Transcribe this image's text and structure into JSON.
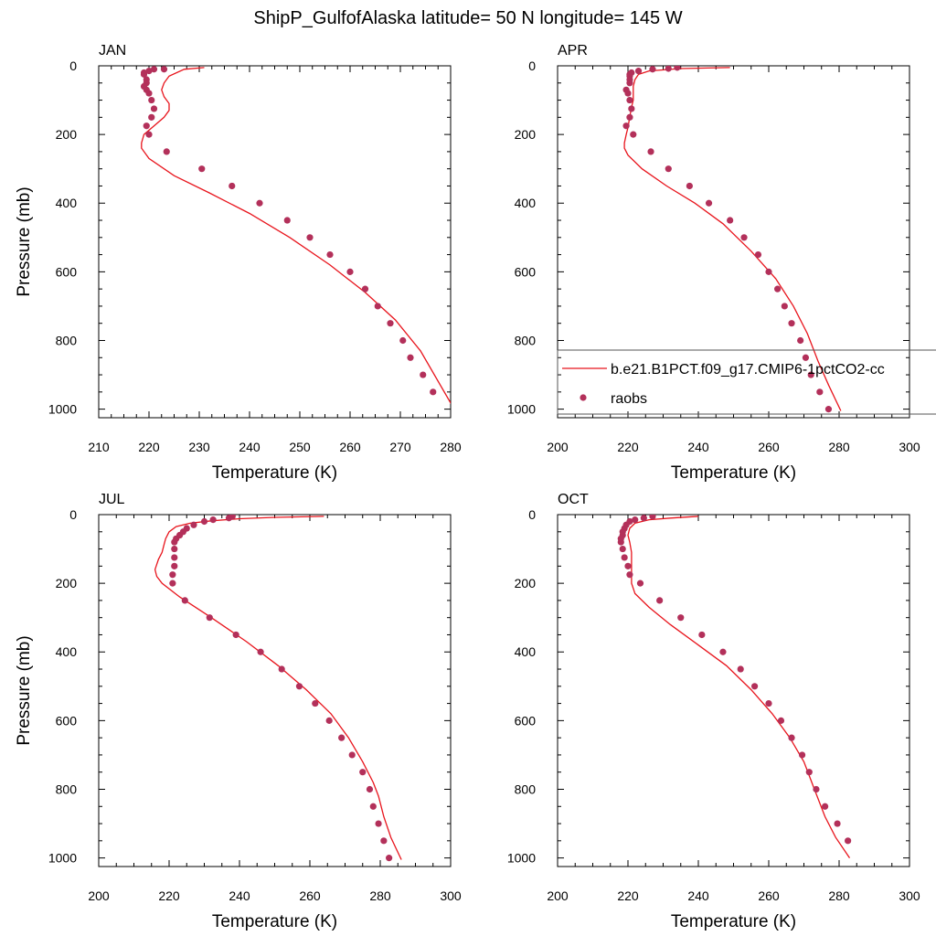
{
  "figure": {
    "title": "ShipP_GulfofAlaska  latitude= 50 N longitude= 145 W"
  },
  "legend": {
    "model_label": "b.e21.B1PCT.f09_g17.CMIP6-1pctCO2-cc",
    "obs_label": "raobs"
  },
  "colors": {
    "model_line": "#e8141c",
    "obs_marker": "#b3305a"
  },
  "chart_data": [
    {
      "type": "line",
      "title": "JAN",
      "xlabel": "Temperature (K)",
      "ylabel": "Pressure (mb)",
      "xlim": [
        210,
        280
      ],
      "xticks": [
        210,
        220,
        230,
        240,
        250,
        260,
        270,
        280
      ],
      "ylim": [
        1025,
        0
      ],
      "yticks": [
        0,
        200,
        400,
        600,
        800,
        1000
      ],
      "series": [
        {
          "kind": "line",
          "x": [
            231,
            227,
            224,
            223,
            222.5,
            223,
            224,
            224,
            223,
            221,
            219,
            218.5,
            218.5,
            220,
            225,
            232,
            240,
            248,
            256,
            263,
            269,
            274,
            280.5
          ],
          "y": [
            5,
            10,
            30,
            50,
            70,
            90,
            110,
            130,
            150,
            175,
            200,
            225,
            240,
            270,
            320,
            370,
            430,
            500,
            580,
            660,
            740,
            830,
            995
          ]
        },
        {
          "kind": "scatter",
          "x": [
            223,
            221,
            220,
            219,
            219,
            219.5,
            219.5,
            219,
            219.5,
            220,
            220.5,
            221,
            220.5,
            219.5,
            220,
            223.5,
            230.5,
            236.5,
            242,
            247.5,
            252,
            256,
            260,
            263,
            265.5,
            268,
            270.5,
            272,
            274.5,
            276.5
          ],
          "y": [
            10,
            10,
            15,
            20,
            25,
            40,
            50,
            60,
            70,
            80,
            100,
            125,
            150,
            175,
            200,
            250,
            300,
            350,
            400,
            450,
            500,
            550,
            600,
            650,
            700,
            750,
            800,
            850,
            900,
            950
          ]
        }
      ]
    },
    {
      "type": "line",
      "title": "APR",
      "xlabel": "Temperature (K)",
      "ylabel": "",
      "xlim": [
        200,
        300
      ],
      "xticks": [
        200,
        220,
        240,
        260,
        280,
        300
      ],
      "ylim": [
        1025,
        0
      ],
      "yticks": [
        0,
        200,
        400,
        600,
        800,
        1000
      ],
      "series": [
        {
          "kind": "line",
          "x": [
            249,
            235,
            226,
            223,
            222,
            221.5,
            221.5,
            221.5,
            221,
            220.5,
            220,
            219.5,
            219,
            219,
            220,
            224,
            231,
            239,
            247,
            255,
            262,
            267,
            271,
            274,
            277,
            280.5
          ],
          "y": [
            5,
            8,
            15,
            25,
            40,
            60,
            80,
            100,
            120,
            150,
            180,
            200,
            225,
            240,
            260,
            300,
            350,
            400,
            460,
            540,
            620,
            700,
            780,
            860,
            930,
            1005
          ]
        },
        {
          "kind": "scatter",
          "x": [
            234,
            231.5,
            227,
            223,
            221,
            220.5,
            220.5,
            220.5,
            220.5,
            219.5,
            220,
            220.5,
            221,
            220.5,
            219.5,
            221.5,
            226.5,
            231.5,
            237.5,
            243,
            249,
            253,
            257,
            260,
            262.5,
            264.5,
            266.5,
            269,
            270.5,
            272,
            274.5,
            277
          ],
          "y": [
            5,
            8,
            10,
            15,
            20,
            25,
            30,
            40,
            50,
            70,
            80,
            100,
            125,
            150,
            175,
            200,
            250,
            300,
            350,
            400,
            450,
            500,
            550,
            600,
            650,
            700,
            750,
            800,
            850,
            900,
            950,
            1000
          ]
        }
      ]
    },
    {
      "type": "line",
      "title": "JUL",
      "xlabel": "Temperature (K)",
      "ylabel": "Pressure (mb)",
      "xlim": [
        200,
        300
      ],
      "xticks": [
        200,
        220,
        240,
        260,
        280,
        300
      ],
      "ylim": [
        1025,
        0
      ],
      "yticks": [
        0,
        200,
        400,
        600,
        800,
        1000
      ],
      "series": [
        {
          "kind": "line",
          "x": [
            264,
            250,
            240,
            232,
            226,
            222,
            220,
            219,
            218.5,
            218,
            217,
            216,
            216.5,
            218,
            223,
            232,
            242,
            251,
            259,
            266,
            271,
            275,
            278,
            279.5,
            281,
            283,
            286
          ],
          "y": [
            5,
            8,
            12,
            18,
            25,
            35,
            50,
            70,
            90,
            110,
            130,
            160,
            180,
            200,
            240,
            300,
            370,
            440,
            510,
            580,
            650,
            720,
            780,
            820,
            880,
            940,
            1005
          ]
        },
        {
          "kind": "scatter",
          "x": [
            238,
            237,
            232.5,
            230,
            227,
            225,
            224,
            223,
            222,
            221.5,
            221.5,
            221.5,
            221.5,
            221,
            221,
            224.5,
            231.5,
            239,
            246,
            252,
            257,
            261.5,
            265.5,
            269,
            272,
            275,
            277,
            278,
            279.5,
            281,
            282.5
          ],
          "y": [
            5,
            10,
            15,
            20,
            30,
            40,
            50,
            60,
            70,
            80,
            100,
            125,
            150,
            175,
            200,
            250,
            300,
            350,
            400,
            450,
            500,
            550,
            600,
            650,
            700,
            750,
            800,
            850,
            900,
            950,
            1000
          ]
        }
      ]
    },
    {
      "type": "line",
      "title": "OCT",
      "xlabel": "Temperature (K)",
      "ylabel": "",
      "xlim": [
        200,
        300
      ],
      "xticks": [
        200,
        220,
        240,
        260,
        280,
        300
      ],
      "ylim": [
        1025,
        0
      ],
      "yticks": [
        0,
        200,
        400,
        600,
        800,
        1000
      ],
      "series": [
        {
          "kind": "line",
          "x": [
            240,
            232,
            226,
            222,
            220.5,
            220,
            220.5,
            221,
            221,
            221,
            221,
            222,
            226,
            232,
            240,
            248,
            255,
            261,
            266,
            270,
            273,
            276,
            279,
            283
          ],
          "y": [
            5,
            10,
            15,
            25,
            40,
            60,
            80,
            110,
            140,
            170,
            200,
            230,
            270,
            320,
            380,
            440,
            510,
            580,
            650,
            720,
            800,
            880,
            940,
            1000
          ]
        },
        {
          "kind": "scatter",
          "x": [
            227,
            224.5,
            222,
            220.5,
            219.5,
            219,
            218.5,
            218.5,
            218,
            218,
            218.5,
            219,
            220,
            220.5,
            223.5,
            229,
            235,
            241,
            247,
            252,
            256,
            260,
            263.5,
            266.5,
            269.5,
            271.5,
            273.5,
            276,
            279.5,
            282.5
          ],
          "y": [
            5,
            10,
            15,
            20,
            30,
            40,
            50,
            60,
            70,
            80,
            100,
            125,
            150,
            175,
            200,
            250,
            300,
            350,
            400,
            450,
            500,
            550,
            600,
            650,
            700,
            750,
            800,
            850,
            900,
            950
          ]
        }
      ]
    }
  ]
}
